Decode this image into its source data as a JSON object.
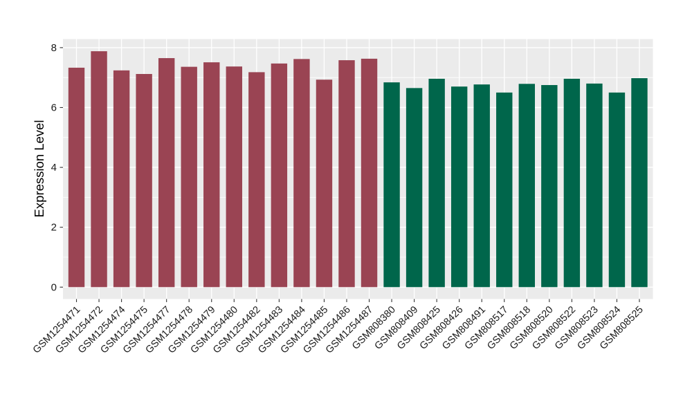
{
  "figure": {
    "background_color": "#FFFFFF",
    "panel_background_color": "#EBEBEB",
    "grid_color": "#FFFFFF",
    "tick_mark_color": "#333333",
    "axis_text_color": "#1A1A1A"
  },
  "chart_data": {
    "type": "bar",
    "title": "",
    "xlabel": "",
    "ylabel": "Expression Level",
    "ylim": [
      0,
      8.3
    ],
    "yticks": [
      0,
      2,
      4,
      6,
      8
    ],
    "yticks_minor": [
      1,
      3,
      5,
      7
    ],
    "grid": true,
    "legend_position": "none",
    "categories": [
      "GSM1254471",
      "GSM1254472",
      "GSM1254474",
      "GSM1254475",
      "GSM1254477",
      "GSM1254478",
      "GSM1254479",
      "GSM1254480",
      "GSM1254482",
      "GSM1254483",
      "GSM1254484",
      "GSM1254485",
      "GSM1254486",
      "GSM1254487",
      "GSM808380",
      "GSM808409",
      "GSM808425",
      "GSM808426",
      "GSM808491",
      "GSM808517",
      "GSM808518",
      "GSM808520",
      "GSM808522",
      "GSM808523",
      "GSM808524",
      "GSM808525"
    ],
    "values": [
      7.33,
      7.88,
      7.24,
      7.12,
      7.65,
      7.36,
      7.51,
      7.37,
      7.18,
      7.47,
      7.62,
      6.93,
      7.58,
      7.63,
      6.84,
      6.65,
      6.96,
      6.7,
      6.77,
      6.5,
      6.79,
      6.75,
      6.96,
      6.8,
      6.5,
      6.98
    ],
    "groups": [
      "maroon",
      "maroon",
      "maroon",
      "maroon",
      "maroon",
      "maroon",
      "maroon",
      "maroon",
      "maroon",
      "maroon",
      "maroon",
      "maroon",
      "maroon",
      "maroon",
      "green",
      "green",
      "green",
      "green",
      "green",
      "green",
      "green",
      "green",
      "green",
      "green",
      "green",
      "green"
    ],
    "group_colors": {
      "maroon": "#9A4453",
      "green": "#00664B"
    }
  }
}
